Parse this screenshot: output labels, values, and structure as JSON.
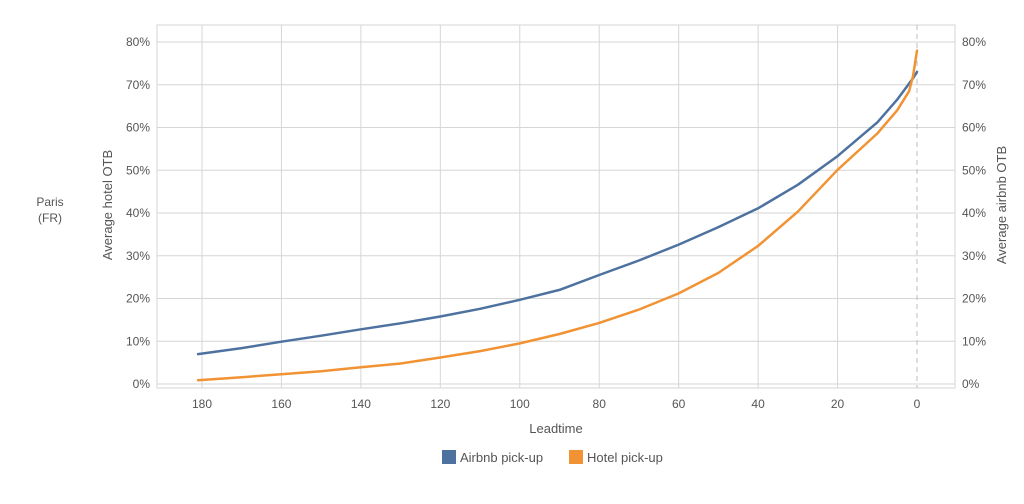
{
  "panel_label": [
    "Paris",
    "(FR)"
  ],
  "chart_data": {
    "type": "line",
    "xlabel": "Leadtime",
    "ylabel_left": "Average hotel OTB",
    "ylabel_right": "Average airbnb OTB",
    "x_ticks": [
      180,
      160,
      140,
      120,
      100,
      80,
      60,
      40,
      20,
      0
    ],
    "y_ticks": [
      0,
      10,
      20,
      30,
      40,
      50,
      60,
      70,
      80
    ],
    "y_tick_labels": [
      "0%",
      "10%",
      "20%",
      "30%",
      "40%",
      "50%",
      "60%",
      "70%",
      "80%"
    ],
    "xlim": [
      180,
      0
    ],
    "ylim": [
      0,
      80
    ],
    "grid": true,
    "x_reversed": true,
    "marker_line_x": 0,
    "legend_position": "bottom",
    "series": [
      {
        "name": "Airbnb pick-up",
        "color": "#4e72a0",
        "x": [
          181,
          170,
          160,
          150,
          140,
          130,
          120,
          110,
          100,
          90,
          80,
          70,
          60,
          50,
          40,
          30,
          20,
          10,
          5,
          1,
          0
        ],
        "y": [
          7,
          8.4,
          9.9,
          11.3,
          12.8,
          14.2,
          15.8,
          17.6,
          19.7,
          22,
          25.5,
          28.9,
          32.6,
          36.7,
          41.1,
          46.6,
          53.3,
          61.2,
          66.5,
          71.5,
          73
        ]
      },
      {
        "name": "Hotel pick-up",
        "color": "#f19334",
        "x": [
          181,
          170,
          160,
          150,
          140,
          130,
          120,
          110,
          100,
          90,
          80,
          70,
          60,
          50,
          40,
          30,
          20,
          10,
          5,
          2,
          1,
          0
        ],
        "y": [
          0.9,
          1.6,
          2.3,
          3,
          3.9,
          4.8,
          6.2,
          7.7,
          9.5,
          11.7,
          14.3,
          17.4,
          21.2,
          26,
          32.3,
          40.3,
          50.1,
          58.6,
          64,
          68.5,
          72,
          78
        ]
      }
    ]
  }
}
